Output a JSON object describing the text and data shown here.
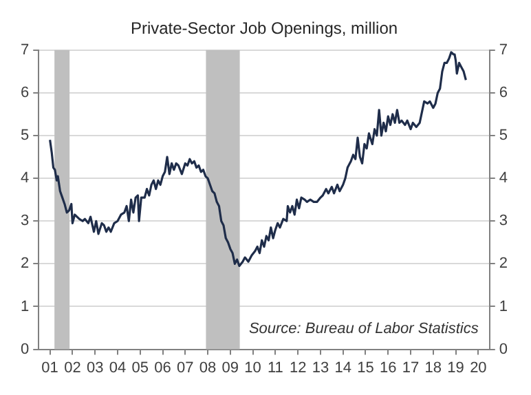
{
  "chart_data": {
    "type": "line",
    "title": "Private-Sector Job Openings, million",
    "annotations": [
      "Source: Bureau of Labor Statistics"
    ],
    "series": [
      {
        "color": "#1f2d4a",
        "x": [
          2001.0,
          2001.08,
          2001.15,
          2001.22,
          2001.3,
          2001.35,
          2001.45,
          2001.55,
          2001.65,
          2001.75,
          2001.85,
          2001.95,
          2002.0,
          2002.1,
          2002.3,
          2002.45,
          2002.55,
          2002.7,
          2002.8,
          2002.95,
          2003.05,
          2003.15,
          2003.3,
          2003.4,
          2003.5,
          2003.6,
          2003.7,
          2003.85,
          2004.0,
          2004.15,
          2004.3,
          2004.4,
          2004.5,
          2004.6,
          2004.7,
          2004.8,
          2004.9,
          2004.95,
          2005.05,
          2005.2,
          2005.3,
          2005.4,
          2005.5,
          2005.6,
          2005.7,
          2005.8,
          2005.9,
          2006.0,
          2006.1,
          2006.2,
          2006.3,
          2006.4,
          2006.5,
          2006.6,
          2006.7,
          2006.85,
          2007.0,
          2007.1,
          2007.2,
          2007.3,
          2007.4,
          2007.5,
          2007.6,
          2007.7,
          2007.8,
          2007.9,
          2008.0,
          2008.1,
          2008.2,
          2008.3,
          2008.4,
          2008.5,
          2008.6,
          2008.7,
          2008.8,
          2008.9,
          2009.0,
          2009.1,
          2009.2,
          2009.3,
          2009.4,
          2009.55,
          2009.65,
          2009.8,
          2009.95,
          2010.1,
          2010.2,
          2010.3,
          2010.4,
          2010.5,
          2010.6,
          2010.7,
          2010.8,
          2010.9,
          2011.0,
          2011.1,
          2011.2,
          2011.35,
          2011.5,
          2011.55,
          2011.65,
          2011.75,
          2011.85,
          2011.95,
          2012.05,
          2012.15,
          2012.3,
          2012.4,
          2012.55,
          2012.7,
          2012.85,
          2013.0,
          2013.1,
          2013.25,
          2013.35,
          2013.5,
          2013.6,
          2013.75,
          2013.85,
          2014.0,
          2014.1,
          2014.2,
          2014.35,
          2014.45,
          2014.55,
          2014.65,
          2014.75,
          2014.85,
          2014.95,
          2015.05,
          2015.15,
          2015.3,
          2015.4,
          2015.5,
          2015.6,
          2015.7,
          2015.8,
          2015.9,
          2016.0,
          2016.1,
          2016.2,
          2016.3,
          2016.4,
          2016.5,
          2016.6,
          2016.75,
          2016.85,
          2017.0,
          2017.1,
          2017.25,
          2017.4,
          2017.5,
          2017.6,
          2017.75,
          2017.85,
          2018.0,
          2018.1,
          2018.2,
          2018.3,
          2018.4,
          2018.5,
          2018.6,
          2018.7,
          2018.8,
          2018.9,
          2018.95,
          2019.0,
          2019.05,
          2019.15,
          2019.25,
          2019.35,
          2019.45
        ],
        "values": [
          4.9,
          4.6,
          4.25,
          4.2,
          3.95,
          4.05,
          3.7,
          3.55,
          3.4,
          3.2,
          3.25,
          3.4,
          2.95,
          3.15,
          3.05,
          3.0,
          3.05,
          2.95,
          3.1,
          2.75,
          3.0,
          2.7,
          2.95,
          2.9,
          2.75,
          2.85,
          2.75,
          2.95,
          3.0,
          3.15,
          3.2,
          3.35,
          3.0,
          3.5,
          3.2,
          3.55,
          3.6,
          3.0,
          3.55,
          3.55,
          3.75,
          3.6,
          3.85,
          3.95,
          3.75,
          3.95,
          3.85,
          4.05,
          4.15,
          4.5,
          4.1,
          4.35,
          4.2,
          4.35,
          4.3,
          4.1,
          4.35,
          4.3,
          4.45,
          4.35,
          4.4,
          4.25,
          4.3,
          4.15,
          4.2,
          4.05,
          4.0,
          3.85,
          3.7,
          3.65,
          3.45,
          3.35,
          3.0,
          2.9,
          2.6,
          2.5,
          2.35,
          2.25,
          2.0,
          2.1,
          1.95,
          2.05,
          2.15,
          2.05,
          2.2,
          2.3,
          2.4,
          2.25,
          2.55,
          2.4,
          2.65,
          2.55,
          2.85,
          2.6,
          2.8,
          2.95,
          2.85,
          3.05,
          3.0,
          3.35,
          3.2,
          3.35,
          3.15,
          3.5,
          3.3,
          3.55,
          3.5,
          3.45,
          3.5,
          3.45,
          3.45,
          3.55,
          3.6,
          3.75,
          3.65,
          3.8,
          3.65,
          3.85,
          3.7,
          3.85,
          4.0,
          4.25,
          4.4,
          4.55,
          4.45,
          4.95,
          4.5,
          4.35,
          4.8,
          4.7,
          5.05,
          4.8,
          5.15,
          5.0,
          5.6,
          5.0,
          5.3,
          5.1,
          5.45,
          5.25,
          5.5,
          5.3,
          5.6,
          5.3,
          5.35,
          5.25,
          5.35,
          5.15,
          5.3,
          5.2,
          5.3,
          5.55,
          5.8,
          5.75,
          5.8,
          5.65,
          5.75,
          6.0,
          6.1,
          6.5,
          6.7,
          6.7,
          6.8,
          6.95,
          6.9,
          6.9,
          6.75,
          6.45,
          6.7,
          6.6,
          6.5,
          6.3
        ]
      }
    ],
    "xlim": [
      2000.5,
      2020.5
    ],
    "xticks": [
      {
        "value": 2001,
        "label": "01"
      },
      {
        "value": 2002,
        "label": "02"
      },
      {
        "value": 2003,
        "label": "03"
      },
      {
        "value": 2004,
        "label": "04"
      },
      {
        "value": 2005,
        "label": "05"
      },
      {
        "value": 2006,
        "label": "06"
      },
      {
        "value": 2007,
        "label": "07"
      },
      {
        "value": 2008,
        "label": "08"
      },
      {
        "value": 2009,
        "label": "09"
      },
      {
        "value": 2010,
        "label": "10"
      },
      {
        "value": 2011,
        "label": "11"
      },
      {
        "value": 2012,
        "label": "12"
      },
      {
        "value": 2013,
        "label": "13"
      },
      {
        "value": 2014,
        "label": "14"
      },
      {
        "value": 2015,
        "label": "15"
      },
      {
        "value": 2016,
        "label": "16"
      },
      {
        "value": 2017,
        "label": "17"
      },
      {
        "value": 2018,
        "label": "18"
      },
      {
        "value": 2019,
        "label": "19"
      },
      {
        "value": 2020,
        "label": "20"
      }
    ],
    "ylim": [
      0,
      7
    ],
    "yticks": [
      0,
      1,
      2,
      3,
      4,
      5,
      6,
      7
    ],
    "y2lim": [
      0,
      7
    ],
    "y2ticks": [
      0,
      1,
      2,
      3,
      4,
      5,
      6,
      7
    ],
    "bands": [
      {
        "axis": "x",
        "from": 2001.2,
        "to": 2001.87,
        "color": "#bfbfbf"
      },
      {
        "axis": "x",
        "from": 2007.92,
        "to": 2009.42,
        "color": "#bfbfbf"
      }
    ],
    "grid": "y",
    "legend": false,
    "line_style": "solid",
    "marker": "none"
  }
}
